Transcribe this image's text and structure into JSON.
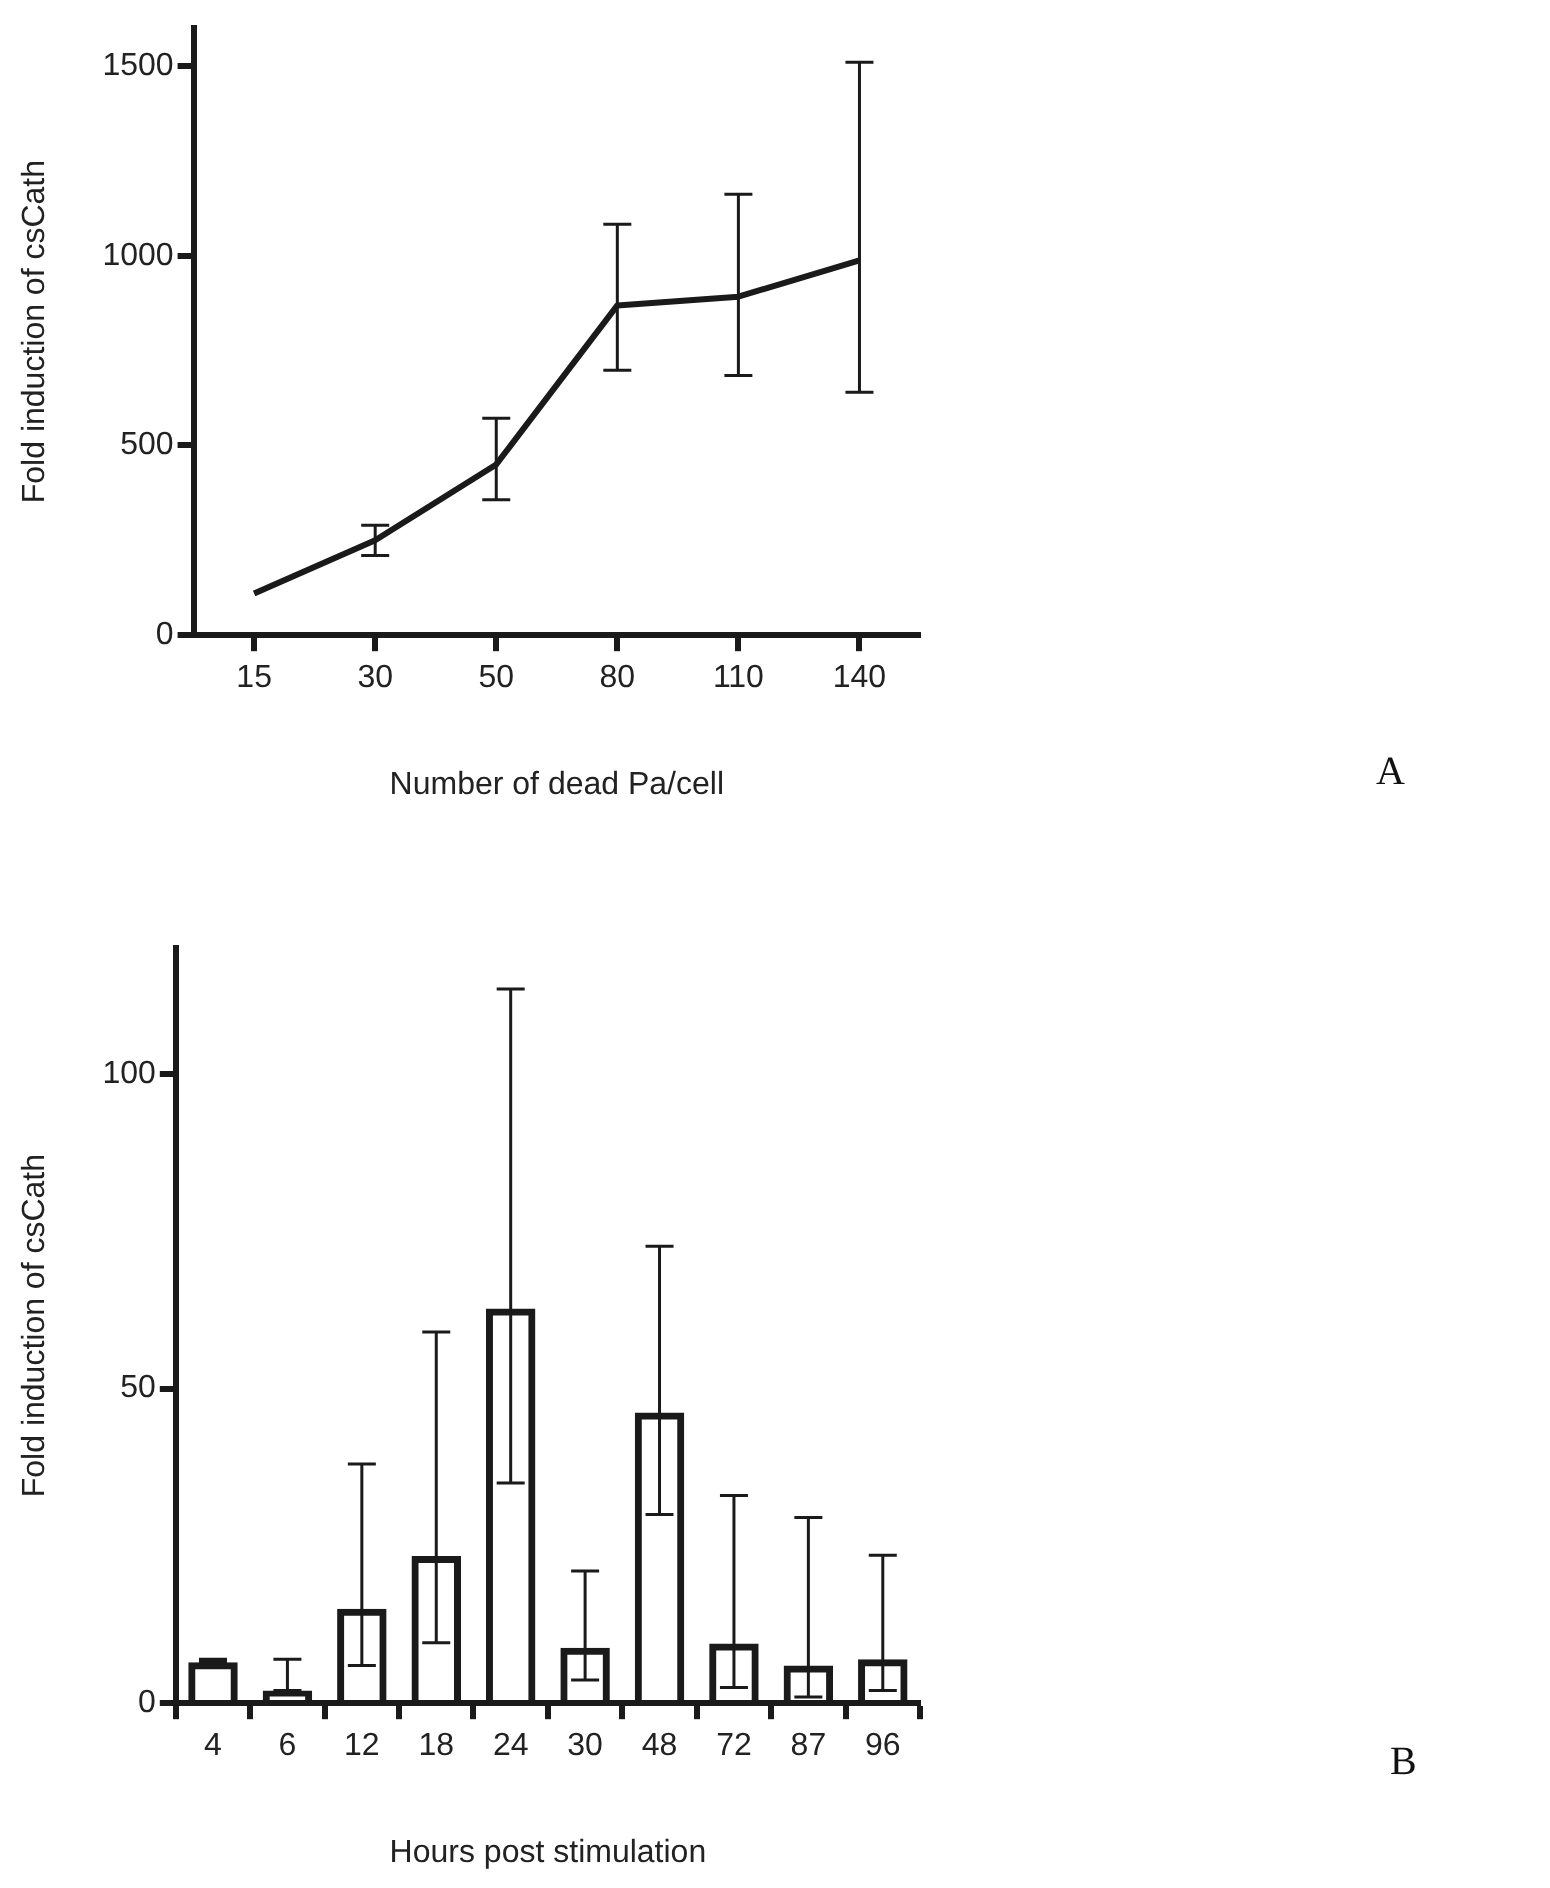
{
  "chart_data": [
    {
      "type": "line",
      "xlabel": "Number of dead Pa/cell",
      "ylabel": "Fold induction of csCath",
      "categories": [
        "15",
        "30",
        "50",
        "80",
        "110",
        "140"
      ],
      "series": [
        {
          "color": "#1a1a1a",
          "values": [
            110,
            250,
            450,
            869,
            892,
            988
          ],
          "errors": [
            null,
            [
              210,
              290
            ],
            [
              357,
              572
            ],
            [
              698,
              1083
            ],
            [
              684,
              1162
            ],
            [
              640,
              1510
            ]
          ]
        }
      ],
      "ylim": [
        0,
        1600
      ],
      "yticks": [
        0,
        500,
        1000,
        1500
      ],
      "grid": false,
      "legend": false,
      "annotations": [
        "A"
      ]
    },
    {
      "type": "bar",
      "xlabel": "Hours post stimulation",
      "ylabel": "Fold induction of csCath",
      "categories": [
        "4",
        "6",
        "12",
        "18",
        "24",
        "30",
        "48",
        "72",
        "87",
        "96"
      ],
      "series": [
        {
          "color": "#1a1a1a",
          "values": [
            6.5,
            2,
            15,
            23.4,
            62.7,
            8.8,
            46.2,
            9.5,
            6,
            7
          ],
          "errors": [
            [
              6.5,
              7
            ],
            [
              2,
              7
            ],
            [
              6,
              38
            ],
            [
              9.6,
              59
            ],
            [
              35,
              113.5
            ],
            [
              3.7,
              21
            ],
            [
              30,
              72.6
            ],
            [
              2.5,
              33
            ],
            [
              1,
              29.5
            ],
            [
              2,
              23.5
            ]
          ]
        }
      ],
      "ylim": [
        0,
        120
      ],
      "yticks": [
        0,
        50,
        100
      ],
      "grid": false,
      "legend": false,
      "annotations": [
        "B"
      ]
    }
  ]
}
